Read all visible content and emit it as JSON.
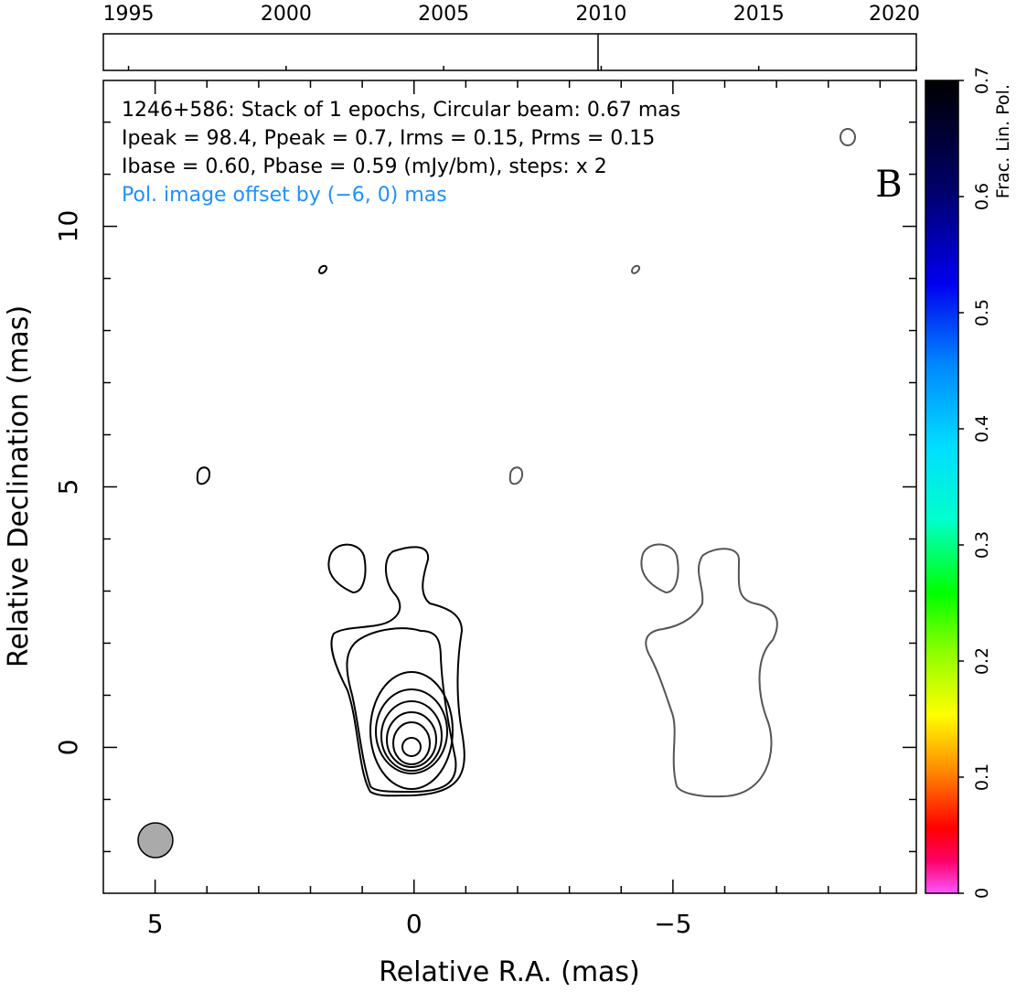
{
  "chart_data": {
    "type": "contour",
    "annotations": [
      {
        "text": "1246+586: Stack of 1 epochs, Circular beam: 0.67 mas",
        "color": "#000000"
      },
      {
        "text": "Ipeak = 98.4, Ppeak = 0.7, Irms = 0.15, Prms = 0.15",
        "color": "#000000"
      },
      {
        "text": "Ibase = 0.60, Pbase = 0.59 (mJy/bm), steps: x 2",
        "color": "#000000"
      },
      {
        "text": "Pol. image offset by (−6, 0) mas",
        "color": "#1e90ff"
      }
    ],
    "panel_label": "B",
    "xlabel": "Relative R.A. (mas)",
    "ylabel": "Relative Declination (mas)",
    "xlim": [
      6,
      -9.7
    ],
    "ylim": [
      -2.8,
      12.8
    ],
    "xticks": [
      5,
      0,
      {
        "value": -5,
        "label": "−5"
      }
    ],
    "yticks": [
      0,
      5,
      10
    ],
    "xminorticks": [
      4,
      3,
      2,
      1,
      -1,
      -2,
      -3,
      -4,
      -6,
      -7,
      -8,
      -9
    ],
    "yminorticks": [
      -2,
      -1,
      1,
      2,
      3,
      4,
      6,
      7,
      8,
      9,
      11,
      12
    ],
    "timeline": {
      "xlim": [
        1994.2,
        2020
      ],
      "xticks": [
        1995,
        2000,
        2005,
        2010,
        2015,
        2020
      ],
      "epochs": [
        2009.9
      ]
    },
    "colorbar": {
      "label": "Frac. Lin. Pol.",
      "ylim": [
        0,
        0.7
      ],
      "yticks": [
        0,
        0.1,
        0.2,
        0.3,
        0.4,
        0.5,
        0.6,
        0.7
      ]
    }
  }
}
